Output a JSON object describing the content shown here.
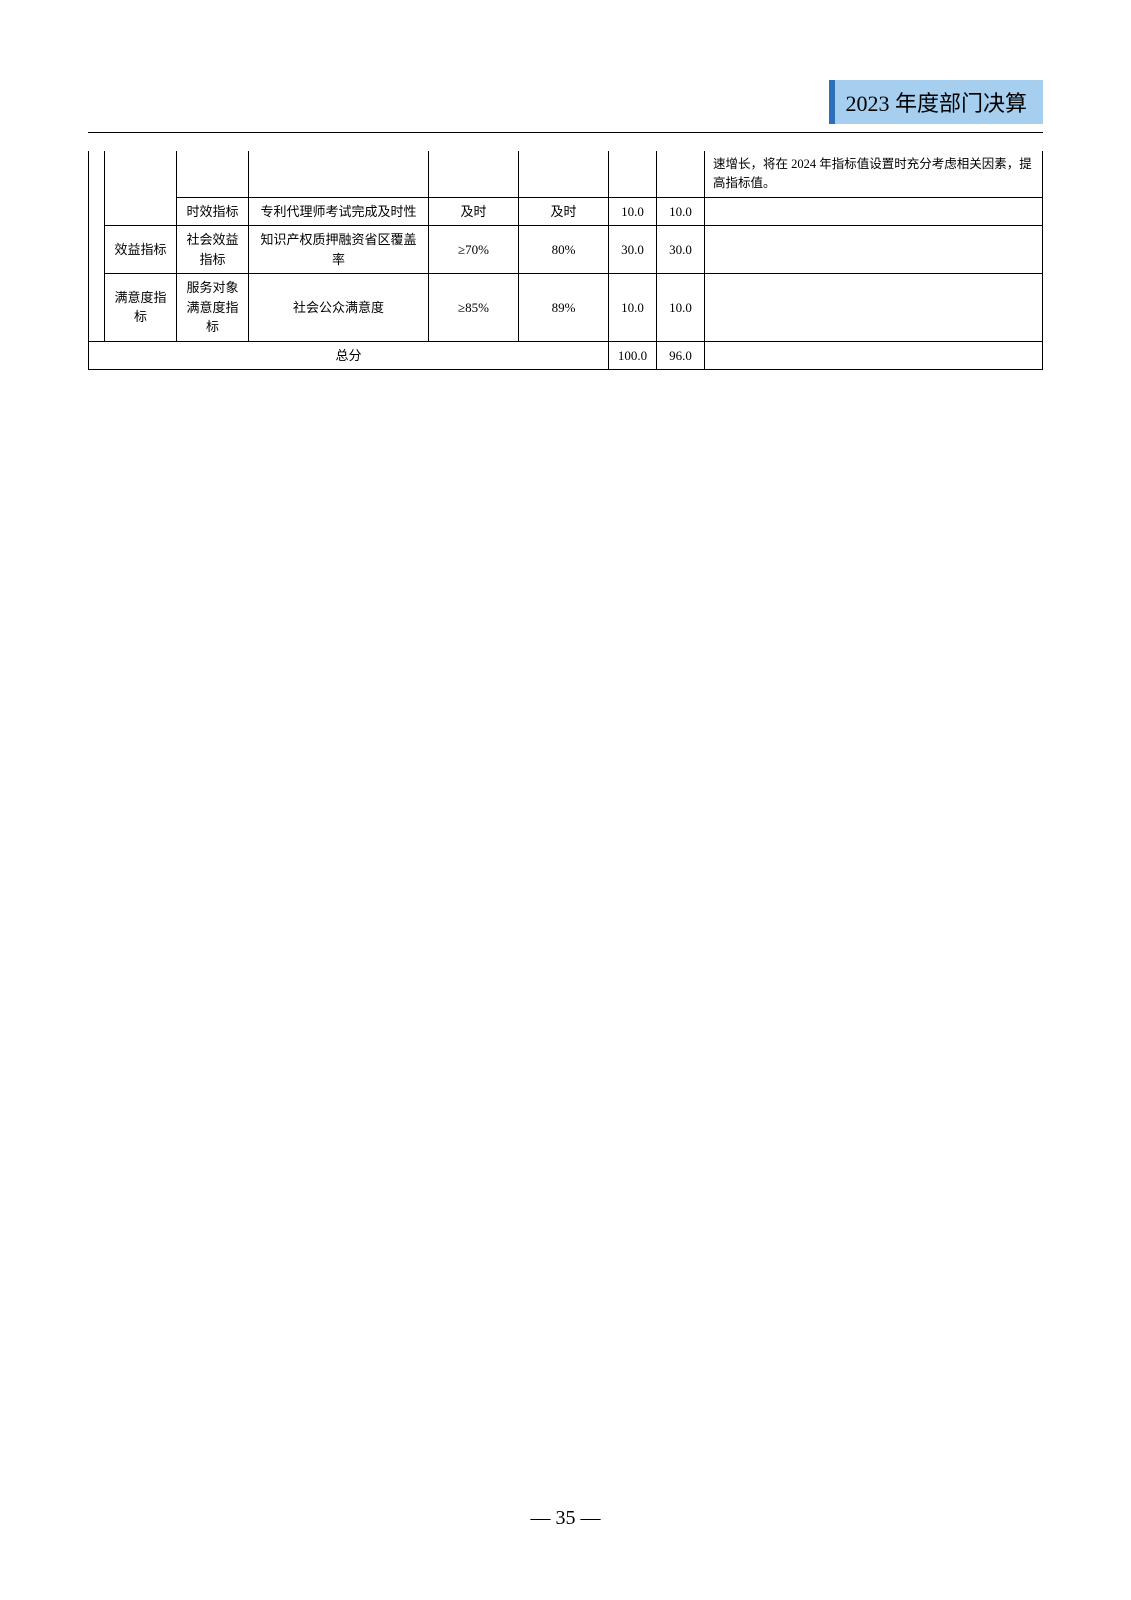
{
  "header": {
    "title": "2023 年度部门决算"
  },
  "table": {
    "rows": [
      {
        "remark": "速增长，将在 2024 年指标值设置时充分考虑相关因素，提高指标值。"
      },
      {
        "sub": "时效指标",
        "indicator": "专利代理师考试完成及时性",
        "target": "及时",
        "actual": "及时",
        "score1": "10.0",
        "score2": "10.0",
        "remark": ""
      },
      {
        "category": "效益指标",
        "sub": "社会效益指标",
        "indicator": "知识产权质押融资省区覆盖率",
        "target": "≥70%",
        "actual": "80%",
        "score1": "30.0",
        "score2": "30.0",
        "remark": ""
      },
      {
        "category": "满意度指标",
        "sub": "服务对象满意度指标",
        "indicator": "社会公众满意度",
        "target": "≥85%",
        "actual": "89%",
        "score1": "10.0",
        "score2": "10.0",
        "remark": ""
      }
    ],
    "total": {
      "label": "总分",
      "score1": "100.0",
      "score2": "96.0"
    }
  },
  "footer": {
    "page_number": "— 35 —"
  }
}
